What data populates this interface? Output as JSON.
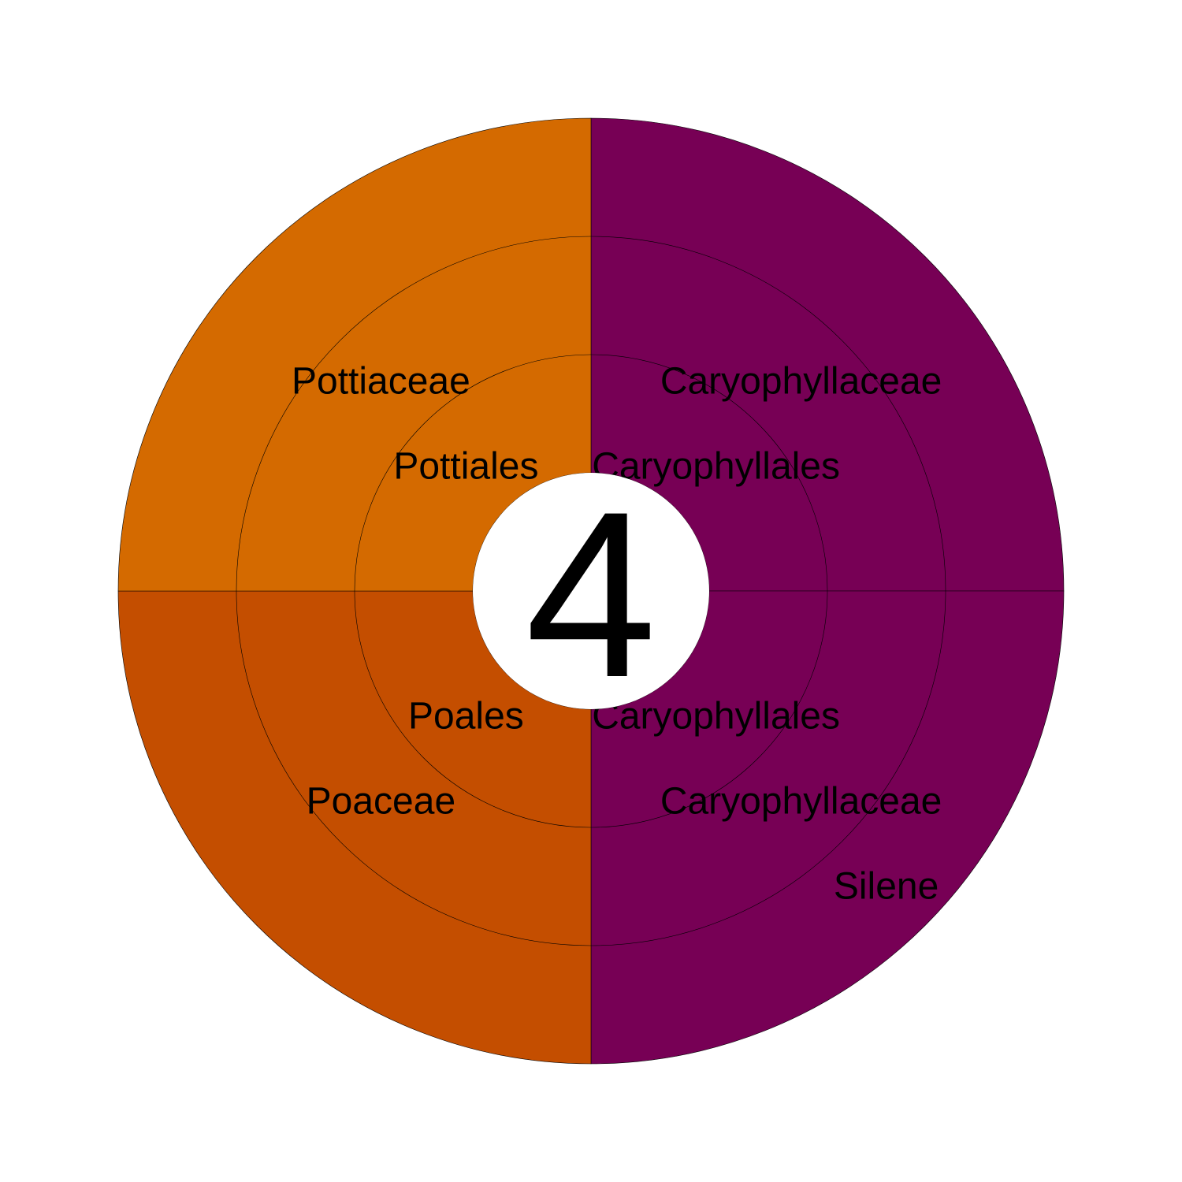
{
  "chart_data": {
    "type": "sunburst",
    "center_label": "4",
    "levels": [
      "order",
      "family",
      "genus"
    ],
    "colors": {
      "Pottiales": "#d46a00",
      "Poales": "#c44e00",
      "Caryophyllales": "#770055",
      "center": "#ffffff"
    },
    "slices": [
      {
        "order": "Caryophyllales",
        "family": "Caryophyllaceae",
        "genus": "",
        "value": 1
      },
      {
        "order": "Caryophyllales",
        "family": "Caryophyllaceae",
        "genus": "Silene",
        "value": 1
      },
      {
        "order": "Poales",
        "family": "Poaceae",
        "genus": "",
        "value": 1
      },
      {
        "order": "Pottiales",
        "family": "Pottiaceae",
        "genus": "",
        "value": 1
      }
    ]
  }
}
